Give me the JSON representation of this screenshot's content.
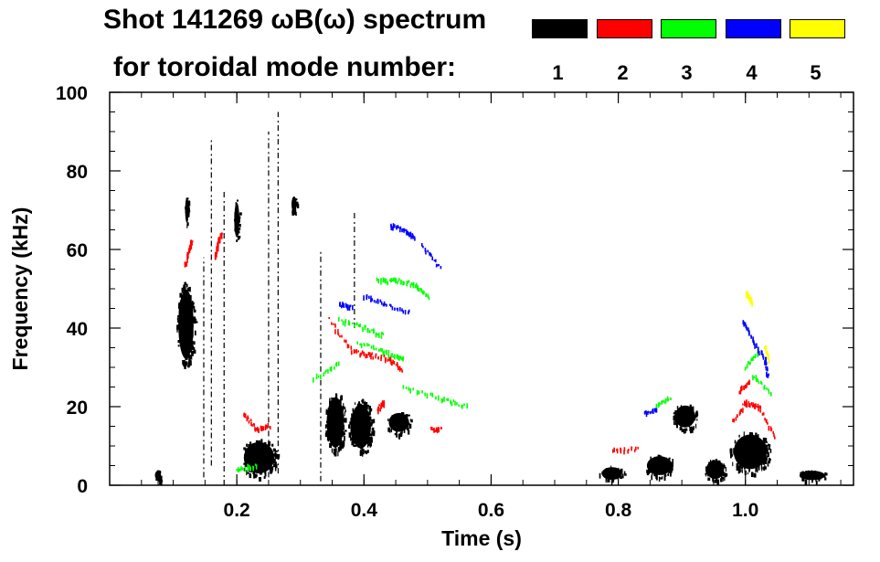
{
  "title": {
    "line1": "Shot 141269 ωB(ω) spectrum",
    "line2": "for toroidal mode number:"
  },
  "legend": {
    "entries": [
      {
        "label": "1",
        "color": "#000000"
      },
      {
        "label": "2",
        "color": "#ff0000"
      },
      {
        "label": "3",
        "color": "#00ff00"
      },
      {
        "label": "4",
        "color": "#0000ff"
      },
      {
        "label": "5",
        "color": "#ffff00"
      }
    ]
  },
  "chart_data": {
    "type": "scatter",
    "xlabel": "Time (s)",
    "ylabel": "Frequency (kHz)",
    "xlim": [
      0.0,
      1.17
    ],
    "ylim": [
      0,
      100
    ],
    "x_ticks": [
      0.2,
      0.4,
      0.6,
      0.8,
      1.0
    ],
    "x_tick_labels": [
      "0.2",
      "0.4",
      "0.6",
      "0.8",
      "1.0"
    ],
    "y_ticks": [
      0,
      20,
      40,
      60,
      80,
      100
    ],
    "y_tick_labels": [
      "0",
      "20",
      "40",
      "60",
      "80",
      "100"
    ],
    "grid": false,
    "series": [
      {
        "name": "1",
        "color": "#000000",
        "blobs": [
          {
            "t0": 0.105,
            "t1": 0.135,
            "f0": 30,
            "f1": 52
          },
          {
            "t0": 0.118,
            "t1": 0.125,
            "f0": 66,
            "f1": 74
          },
          {
            "t0": 0.195,
            "t1": 0.205,
            "f0": 62,
            "f1": 73
          },
          {
            "t0": 0.205,
            "t1": 0.265,
            "f0": 2,
            "f1": 12
          },
          {
            "t0": 0.285,
            "t1": 0.295,
            "f0": 69,
            "f1": 74
          },
          {
            "t0": 0.338,
            "t1": 0.372,
            "f0": 8,
            "f1": 24
          },
          {
            "t0": 0.375,
            "t1": 0.415,
            "f0": 8,
            "f1": 22
          },
          {
            "t0": 0.435,
            "t1": 0.475,
            "f0": 13,
            "f1": 19
          },
          {
            "t0": 0.885,
            "t1": 0.925,
            "f0": 14,
            "f1": 21
          },
          {
            "t0": 0.975,
            "t1": 1.04,
            "f0": 3,
            "f1": 14
          },
          {
            "t0": 1.08,
            "t1": 1.13,
            "f0": 1,
            "f1": 4
          },
          {
            "t0": 0.07,
            "t1": 0.082,
            "f0": 1,
            "f1": 4
          },
          {
            "t0": 0.77,
            "t1": 0.81,
            "f0": 1,
            "f1": 5
          },
          {
            "t0": 0.84,
            "t1": 0.89,
            "f0": 2,
            "f1": 8
          },
          {
            "t0": 0.935,
            "t1": 0.97,
            "f0": 1,
            "f1": 7
          }
        ],
        "lines": [
          {
            "t": 0.16,
            "f0": 5,
            "f1": 88
          },
          {
            "t": 0.18,
            "f0": 0,
            "f1": 75
          },
          {
            "t": 0.25,
            "f0": 2,
            "f1": 90
          },
          {
            "t": 0.265,
            "f0": 3,
            "f1": 95
          },
          {
            "t": 0.332,
            "f0": 1,
            "f1": 60
          },
          {
            "t": 0.385,
            "f0": 40,
            "f1": 70
          },
          {
            "t": 0.148,
            "f0": 2,
            "f1": 58
          }
        ]
      },
      {
        "name": "2",
        "color": "#ff0000",
        "tracks": [
          {
            "t": [
              0.118,
              0.125,
              0.128
            ],
            "f": [
              56,
              60,
              62
            ]
          },
          {
            "t": [
              0.165,
              0.17,
              0.175
            ],
            "f": [
              58,
              62,
              64
            ]
          },
          {
            "t": [
              0.21,
              0.23,
              0.25
            ],
            "f": [
              18,
              14,
              15
            ]
          },
          {
            "t": [
              0.345,
              0.38,
              0.41,
              0.44,
              0.46
            ],
            "f": [
              42,
              34,
              33,
              32,
              29
            ]
          },
          {
            "t": [
              0.42,
              0.43
            ],
            "f": [
              19,
              21
            ]
          },
          {
            "t": [
              0.79,
              0.83
            ],
            "f": [
              9,
              9
            ]
          },
          {
            "t": [
              0.98,
              1.0,
              1.02,
              1.045
            ],
            "f": [
              16,
              21,
              20,
              12
            ]
          },
          {
            "t": [
              0.99,
              1.005
            ],
            "f": [
              24,
              26
            ]
          },
          {
            "t": [
              0.505,
              0.52
            ],
            "f": [
              14,
              14
            ]
          }
        ]
      },
      {
        "name": "3",
        "color": "#00ff00",
        "tracks": [
          {
            "t": [
              0.42,
              0.45,
              0.48,
              0.5
            ],
            "f": [
              52,
              52,
              51,
              48
            ]
          },
          {
            "t": [
              0.39,
              0.43,
              0.46
            ],
            "f": [
              36,
              34,
              32
            ]
          },
          {
            "t": [
              0.32,
              0.36
            ],
            "f": [
              27,
              31
            ]
          },
          {
            "t": [
              0.46,
              0.52,
              0.56
            ],
            "f": [
              25,
              22,
              20
            ]
          },
          {
            "t": [
              0.36,
              0.4,
              0.43
            ],
            "f": [
              42,
              40,
              38
            ]
          },
          {
            "t": [
              0.86,
              0.88
            ],
            "f": [
              20,
              22
            ]
          },
          {
            "t": [
              1.01,
              1.04
            ],
            "f": [
              28,
              23
            ]
          },
          {
            "t": [
              1.0,
              1.02
            ],
            "f": [
              30,
              34
            ]
          },
          {
            "t": [
              0.2,
              0.23
            ],
            "f": [
              4,
              5
            ]
          }
        ]
      },
      {
        "name": "4",
        "color": "#0000ff",
        "tracks": [
          {
            "t": [
              0.44,
              0.46,
              0.48
            ],
            "f": [
              66,
              65,
              63
            ]
          },
          {
            "t": [
              0.4,
              0.43,
              0.47
            ],
            "f": [
              48,
              46,
              44
            ]
          },
          {
            "t": [
              0.36,
              0.38
            ],
            "f": [
              46,
              45
            ]
          },
          {
            "t": [
              0.995,
              1.01,
              1.03,
              1.035
            ],
            "f": [
              42,
              37,
              32,
              27
            ]
          },
          {
            "t": [
              0.49,
              0.52
            ],
            "f": [
              61,
              55
            ]
          },
          {
            "t": [
              0.84,
              0.86
            ],
            "f": [
              18,
              19
            ]
          }
        ]
      },
      {
        "name": "5",
        "color": "#ffff00",
        "tracks": [
          {
            "t": [
              1.0,
              1.005,
              1.01
            ],
            "f": [
              49,
              48,
              46
            ]
          },
          {
            "t": [
              1.03,
              1.035
            ],
            "f": [
              35,
              32
            ]
          }
        ]
      }
    ]
  }
}
